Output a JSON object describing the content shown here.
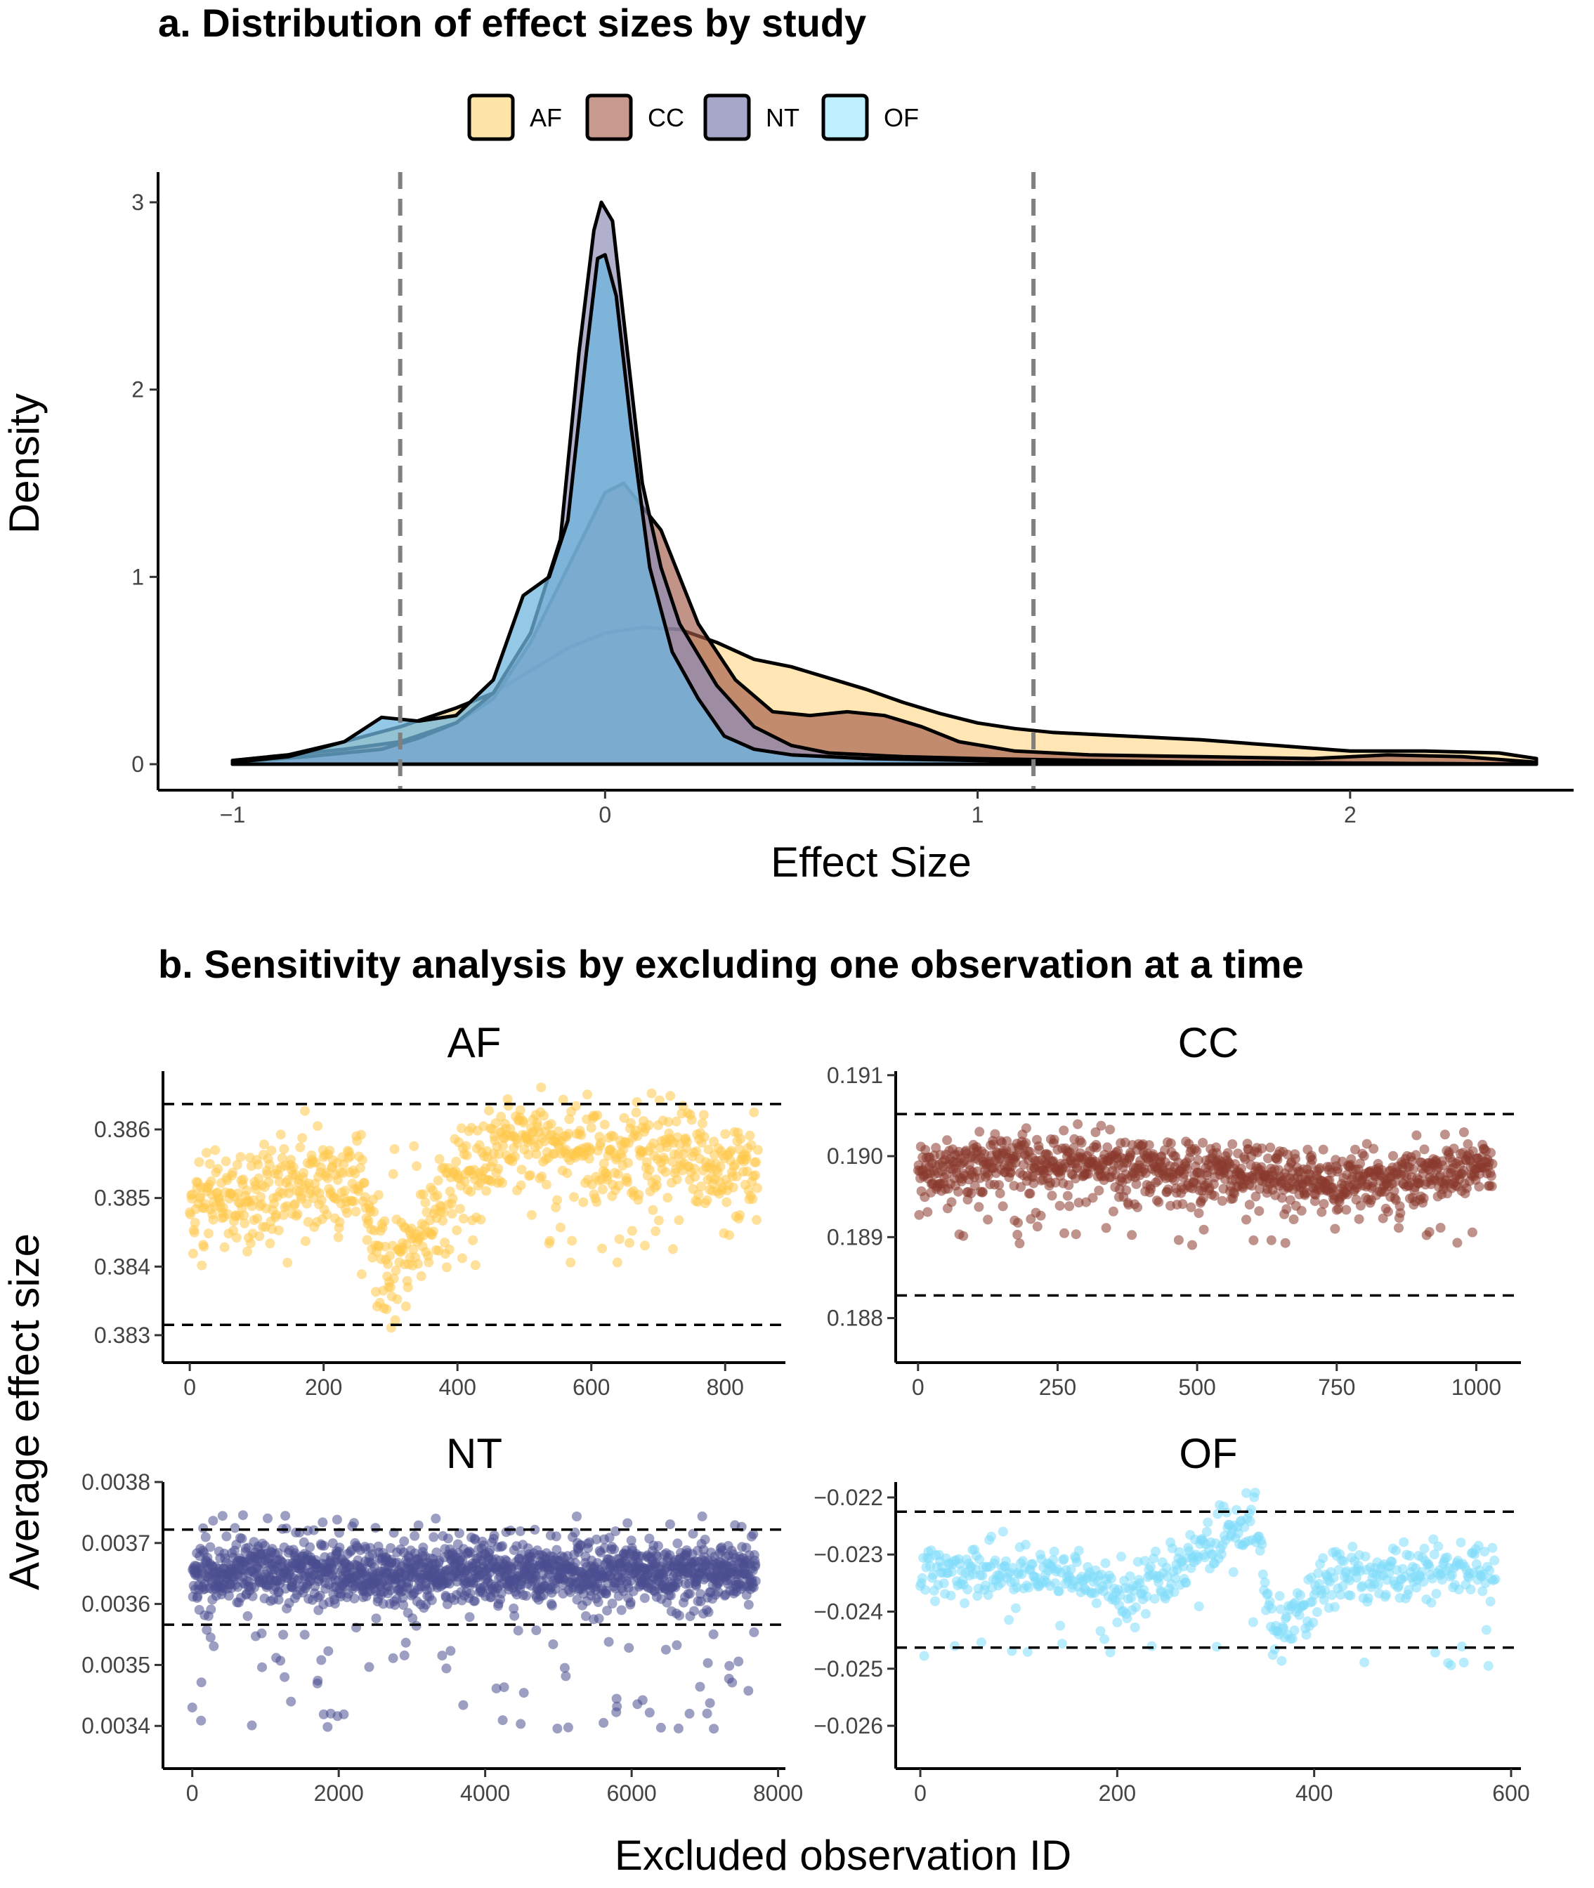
{
  "panel_a_title": "a. Distribution of effect sizes by study",
  "panel_b_title": "b. Sensitivity analysis by excluding one observation at a time",
  "legend": [
    {
      "label": "AF",
      "color": "#FFE4A8"
    },
    {
      "label": "CC",
      "color": "#C89A8E"
    },
    {
      "label": "NT",
      "color": "#A6A6C8"
    },
    {
      "label": "OF",
      "color": "#BFF0FF"
    }
  ],
  "chart_data": [
    {
      "type": "area",
      "title": "a. Distribution of effect sizes by study",
      "xlabel": "Effect Size",
      "ylabel": "Density",
      "xlim": [
        -1.2,
        2.6
      ],
      "ylim": [
        0,
        3.1
      ],
      "xticks": [
        "−1",
        "0",
        "1",
        "2"
      ],
      "xtick_values": [
        -1,
        0,
        1,
        2
      ],
      "yticks": [
        "0",
        "1",
        "2",
        "3"
      ],
      "ytick_values": [
        0,
        1,
        2,
        3
      ],
      "vlines": [
        -0.55,
        1.15
      ],
      "grid": false,
      "legend_position": "top",
      "series": [
        {
          "name": "AF",
          "color": "#FFD88C",
          "opacity": 0.65,
          "points": [
            [
              -1,
              0.02
            ],
            [
              -0.85,
              0.05
            ],
            [
              -0.7,
              0.12
            ],
            [
              -0.55,
              0.2
            ],
            [
              -0.4,
              0.3
            ],
            [
              -0.3,
              0.38
            ],
            [
              -0.2,
              0.5
            ],
            [
              -0.1,
              0.62
            ],
            [
              0,
              0.7
            ],
            [
              0.1,
              0.73
            ],
            [
              0.2,
              0.72
            ],
            [
              0.3,
              0.65
            ],
            [
              0.4,
              0.56
            ],
            [
              0.5,
              0.52
            ],
            [
              0.6,
              0.46
            ],
            [
              0.7,
              0.4
            ],
            [
              0.8,
              0.33
            ],
            [
              0.9,
              0.27
            ],
            [
              1.0,
              0.22
            ],
            [
              1.1,
              0.19
            ],
            [
              1.2,
              0.17
            ],
            [
              1.4,
              0.15
            ],
            [
              1.6,
              0.13
            ],
            [
              1.8,
              0.1
            ],
            [
              2.0,
              0.07
            ],
            [
              2.2,
              0.07
            ],
            [
              2.4,
              0.06
            ],
            [
              2.5,
              0.03
            ]
          ]
        },
        {
          "name": "CC",
          "color": "#A25A48",
          "opacity": 0.65,
          "points": [
            [
              -1,
              0.02
            ],
            [
              -0.85,
              0.05
            ],
            [
              -0.7,
              0.08
            ],
            [
              -0.55,
              0.12
            ],
            [
              -0.4,
              0.22
            ],
            [
              -0.3,
              0.35
            ],
            [
              -0.2,
              0.65
            ],
            [
              -0.1,
              1.05
            ],
            [
              0,
              1.45
            ],
            [
              0.05,
              1.5
            ],
            [
              0.15,
              1.25
            ],
            [
              0.25,
              0.75
            ],
            [
              0.35,
              0.45
            ],
            [
              0.45,
              0.28
            ],
            [
              0.55,
              0.26
            ],
            [
              0.65,
              0.28
            ],
            [
              0.75,
              0.26
            ],
            [
              0.85,
              0.2
            ],
            [
              0.95,
              0.12
            ],
            [
              1.1,
              0.07
            ],
            [
              1.3,
              0.05
            ],
            [
              1.6,
              0.04
            ],
            [
              1.9,
              0.03
            ],
            [
              2.1,
              0.05
            ],
            [
              2.3,
              0.04
            ],
            [
              2.5,
              0.01
            ]
          ]
        },
        {
          "name": "NT",
          "color": "#8E8EB8",
          "opacity": 0.7,
          "points": [
            [
              -1,
              0.01
            ],
            [
              -0.8,
              0.04
            ],
            [
              -0.7,
              0.06
            ],
            [
              -0.6,
              0.08
            ],
            [
              -0.5,
              0.14
            ],
            [
              -0.4,
              0.22
            ],
            [
              -0.3,
              0.38
            ],
            [
              -0.2,
              0.7
            ],
            [
              -0.12,
              1.2
            ],
            [
              -0.07,
              2.2
            ],
            [
              -0.03,
              2.85
            ],
            [
              -0.01,
              3.0
            ],
            [
              0.02,
              2.9
            ],
            [
              0.06,
              2.2
            ],
            [
              0.1,
              1.5
            ],
            [
              0.15,
              1.05
            ],
            [
              0.2,
              0.75
            ],
            [
              0.3,
              0.42
            ],
            [
              0.4,
              0.2
            ],
            [
              0.5,
              0.1
            ],
            [
              0.6,
              0.06
            ],
            [
              0.8,
              0.04
            ],
            [
              1.0,
              0.03
            ],
            [
              1.3,
              0.02
            ],
            [
              1.6,
              0.01
            ],
            [
              2.5,
              0.0
            ]
          ]
        },
        {
          "name": "OF",
          "color": "#6FB6DE",
          "opacity": 0.75,
          "points": [
            [
              -1,
              0.01
            ],
            [
              -0.85,
              0.04
            ],
            [
              -0.7,
              0.12
            ],
            [
              -0.6,
              0.25
            ],
            [
              -0.5,
              0.23
            ],
            [
              -0.4,
              0.26
            ],
            [
              -0.3,
              0.45
            ],
            [
              -0.22,
              0.9
            ],
            [
              -0.15,
              1.0
            ],
            [
              -0.1,
              1.3
            ],
            [
              -0.05,
              2.2
            ],
            [
              -0.02,
              2.7
            ],
            [
              0.0,
              2.72
            ],
            [
              0.03,
              2.5
            ],
            [
              0.07,
              1.8
            ],
            [
              0.12,
              1.05
            ],
            [
              0.18,
              0.6
            ],
            [
              0.25,
              0.35
            ],
            [
              0.32,
              0.15
            ],
            [
              0.4,
              0.08
            ],
            [
              0.5,
              0.05
            ],
            [
              0.7,
              0.03
            ],
            [
              1.0,
              0.02
            ],
            [
              1.3,
              0.01
            ],
            [
              1.6,
              0.01
            ],
            [
              2.5,
              0.0
            ]
          ]
        }
      ]
    },
    {
      "type": "scatter",
      "title": "b. Sensitivity analysis by excluding one observation at a time",
      "xlabel": "Excluded observation ID",
      "ylabel": "Average effect size",
      "grid": false,
      "facets": [
        {
          "name": "AF",
          "color": "#FFC94A",
          "n": 850,
          "xlim": [
            -40,
            890
          ],
          "ylim": [
            0.3826,
            0.38685
          ],
          "xticks": [
            "0",
            "200",
            "400",
            "600",
            "800"
          ],
          "xtick_values": [
            0,
            200,
            400,
            600,
            800
          ],
          "yticks": [
            "0.383",
            "0.384",
            "0.385",
            "0.386"
          ],
          "ytick_values": [
            0.383,
            0.384,
            0.385,
            0.386
          ],
          "hlines": [
            0.38315,
            0.38637
          ],
          "trend": [
            [
              0,
              0.3849
            ],
            [
              150,
              0.3852
            ],
            [
              250,
              0.3853
            ],
            [
              300,
              0.3837
            ],
            [
              350,
              0.3845
            ],
            [
              420,
              0.3855
            ],
            [
              500,
              0.3859
            ],
            [
              600,
              0.3856
            ],
            [
              700,
              0.3857
            ],
            [
              850,
              0.3854
            ]
          ],
          "spread": 0.00035,
          "center": 0.3854,
          "halfrange": 0.0014
        },
        {
          "name": "CC",
          "color": "#8B3A2E",
          "n": 1030,
          "xlim": [
            -40,
            1080
          ],
          "ylim": [
            0.18745,
            0.19105
          ],
          "xticks": [
            "0",
            "250",
            "500",
            "750",
            "1000"
          ],
          "xtick_values": [
            0,
            250,
            500,
            750,
            1000
          ],
          "yticks": [
            "0.188",
            "0.189",
            "0.190",
            "0.191"
          ],
          "ytick_values": [
            0.188,
            0.189,
            0.19,
            0.191
          ],
          "hlines": [
            0.18828,
            0.19052
          ],
          "trend": [
            [
              0,
              0.1898
            ],
            [
              200,
              0.1899
            ],
            [
              300,
              0.1899
            ],
            [
              500,
              0.1898
            ],
            [
              700,
              0.1897
            ],
            [
              850,
              0.1897
            ],
            [
              1030,
              0.1899
            ]
          ],
          "spread": 0.00018,
          "center": 0.1898,
          "halfrange": 0.0009
        },
        {
          "name": "NT",
          "color": "#4A4E8F",
          "n": 7700,
          "xlim": [
            -400,
            8100
          ],
          "ylim": [
            0.00333,
            0.0038
          ],
          "xticks": [
            "0",
            "2000",
            "4000",
            "6000",
            "8000"
          ],
          "xtick_values": [
            0,
            2000,
            4000,
            6000,
            8000
          ],
          "yticks": [
            "0.0034",
            "0.0035",
            "0.0036",
            "0.0037",
            "0.0038"
          ],
          "ytick_values": [
            0.0034,
            0.0035,
            0.0036,
            0.0037,
            0.0038
          ],
          "hlines": [
            0.003566,
            0.003722
          ],
          "trend": [
            [
              0,
              0.00365
            ],
            [
              7700,
              0.00365
            ]
          ],
          "spread": 2.5e-05,
          "center": 0.003655,
          "halfrange": 0.00026
        },
        {
          "name": "OF",
          "color": "#7FDDFA",
          "n": 585,
          "xlim": [
            -25,
            610
          ],
          "ylim": [
            -0.02675,
            -0.02173
          ],
          "xticks": [
            "0",
            "200",
            "400",
            "600"
          ],
          "xtick_values": [
            0,
            200,
            400,
            600
          ],
          "yticks": [
            "−0.026",
            "−0.025",
            "−0.024",
            "−0.023",
            "−0.022"
          ],
          "ytick_values": [
            -0.026,
            -0.025,
            -0.024,
            -0.023,
            -0.022
          ],
          "hlines": [
            -0.02463,
            -0.02225
          ],
          "trend": [
            [
              0,
              -0.0233
            ],
            [
              100,
              -0.0233
            ],
            [
              180,
              -0.0234
            ],
            [
              200,
              -0.0238
            ],
            [
              260,
              -0.0233
            ],
            [
              340,
              -0.0224
            ],
            [
              360,
              -0.0244
            ],
            [
              420,
              -0.0234
            ],
            [
              585,
              -0.0233
            ]
          ],
          "spread": 0.00025,
          "center": -0.0234,
          "halfrange": 0.0016
        }
      ]
    }
  ]
}
